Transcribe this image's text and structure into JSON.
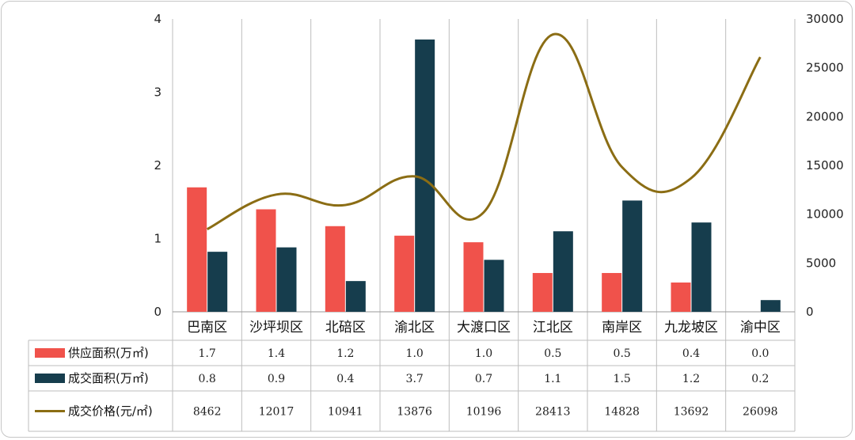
{
  "chart_data": {
    "type": "bar",
    "categories": [
      "巴南区",
      "沙坪坝区",
      "北碚区",
      "渝北区",
      "大渡口区",
      "江北区",
      "南岸区",
      "九龙坡区",
      "渝中区"
    ],
    "series": [
      {
        "name": "供应面积(万㎡)",
        "kind": "bar",
        "axis": "left",
        "color": "#f0524b",
        "values": [
          1.7,
          1.4,
          1.17,
          1.04,
          0.95,
          0.53,
          0.53,
          0.4,
          0.0
        ],
        "labels": [
          "1.7",
          "1.4",
          "1.2",
          "1.0",
          "1.0",
          "0.5",
          "0.5",
          "0.4",
          "0.0"
        ]
      },
      {
        "name": "成交面积(万㎡)",
        "kind": "bar",
        "axis": "left",
        "color": "#163d4d",
        "values": [
          0.82,
          0.88,
          0.42,
          3.72,
          0.71,
          1.1,
          1.52,
          1.22,
          0.16
        ],
        "labels": [
          "0.8",
          "0.9",
          "0.4",
          "3.7",
          "0.7",
          "1.1",
          "1.5",
          "1.2",
          "0.2"
        ]
      },
      {
        "name": "成交价格(元/㎡)",
        "kind": "line",
        "axis": "right",
        "color": "#8b6d14",
        "values": [
          8462,
          12017,
          10941,
          13876,
          10196,
          28413,
          14828,
          13692,
          26098
        ],
        "labels": [
          "8462",
          "12017",
          "10941",
          "13876",
          "10196",
          "28413",
          "14828",
          "13692",
          "26098"
        ]
      }
    ],
    "yleft": {
      "range": [
        0,
        4
      ],
      "ticks": [
        "0",
        "1",
        "2",
        "3",
        "4"
      ]
    },
    "yright": {
      "range": [
        0,
        30000
      ],
      "ticks": [
        "0",
        "5000",
        "10000",
        "15000",
        "20000",
        "25000",
        "30000"
      ]
    },
    "grid": "vertical",
    "legend": "table-left"
  }
}
